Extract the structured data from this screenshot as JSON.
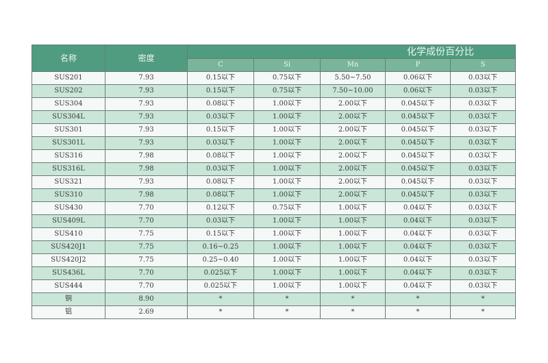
{
  "header": {
    "name": "名称",
    "density": "密度",
    "composition": "化学成份百分比",
    "elements": [
      "C",
      "Si",
      "Mn",
      "P",
      "S"
    ]
  },
  "table": {
    "rows": [
      [
        "SUS201",
        "7.93",
        "0.15以下",
        "0.75以下",
        "5.50~7.50",
        "0.06以下",
        "0.03以下"
      ],
      [
        "SUS202",
        "7.93",
        "0.15以下",
        "0.75以下",
        "7.50~10.00",
        "0.06以下",
        "0.03以下"
      ],
      [
        "SUS304",
        "7.93",
        "0.08以下",
        "1.00以下",
        "2.00以下",
        "0.045以下",
        "0.03以下"
      ],
      [
        "SUS304L",
        "7.93",
        "0.03以下",
        "1.00以下",
        "2.00以下",
        "0.045以下",
        "0.03以下"
      ],
      [
        "SUS301",
        "7.93",
        "0.15以下",
        "1.00以下",
        "2.00以下",
        "0.045以下",
        "0.03以下"
      ],
      [
        "SUS301L",
        "7.93",
        "0.03以下",
        "1.00以下",
        "2.00以下",
        "0.045以下",
        "0.03以下"
      ],
      [
        "SUS316",
        "7.98",
        "0.08以下",
        "1.00以下",
        "2.00以下",
        "0.045以下",
        "0.03以下"
      ],
      [
        "SUS316L",
        "7.98",
        "0.03以下",
        "1.00以下",
        "2.00以下",
        "0.045以下",
        "0.03以下"
      ],
      [
        "SUS321",
        "7.93",
        "0.08以下",
        "1.00以下",
        "2.00以下",
        "0.045以下",
        "0.03以下"
      ],
      [
        "SUS310",
        "7.98",
        "0.08以下",
        "1.00以下",
        "2.00以下",
        "0.045以下",
        "0.03以下"
      ],
      [
        "SUS430",
        "7.70",
        "0.12以下",
        "0.75以下",
        "1.00以下",
        "0.04以下",
        "0.03以下"
      ],
      [
        "SUS409L",
        "7.70",
        "0.03以下",
        "1.00以下",
        "1.00以下",
        "0.04以下",
        "0.03以下"
      ],
      [
        "SUS410",
        "7.75",
        "0.15以下",
        "1.00以下",
        "1.00以下",
        "0.04以下",
        "0.03以下"
      ],
      [
        "SUS420J1",
        "7.75",
        "0.16~0.25",
        "1.00以下",
        "1.00以下",
        "0.04以下",
        "0.03以下"
      ],
      [
        "SUS420J2",
        "7.75",
        "0.25~0.40",
        "1.00以下",
        "1.00以下",
        "0.04以下",
        "0.03以下"
      ],
      [
        "SUS436L",
        "7.70",
        "0.025以下",
        "1.00以下",
        "1.00以下",
        "0.04以下",
        "0.03以下"
      ],
      [
        "SUS444",
        "7.70",
        "0.025以下",
        "1.00以下",
        "1.00以下",
        "0.04以下",
        "0.03以下"
      ],
      [
        "铜",
        "8.90",
        "*",
        "*",
        "*",
        "*",
        "*"
      ],
      [
        "铝",
        "2.69",
        "*",
        "*",
        "*",
        "*",
        "*"
      ]
    ]
  }
}
